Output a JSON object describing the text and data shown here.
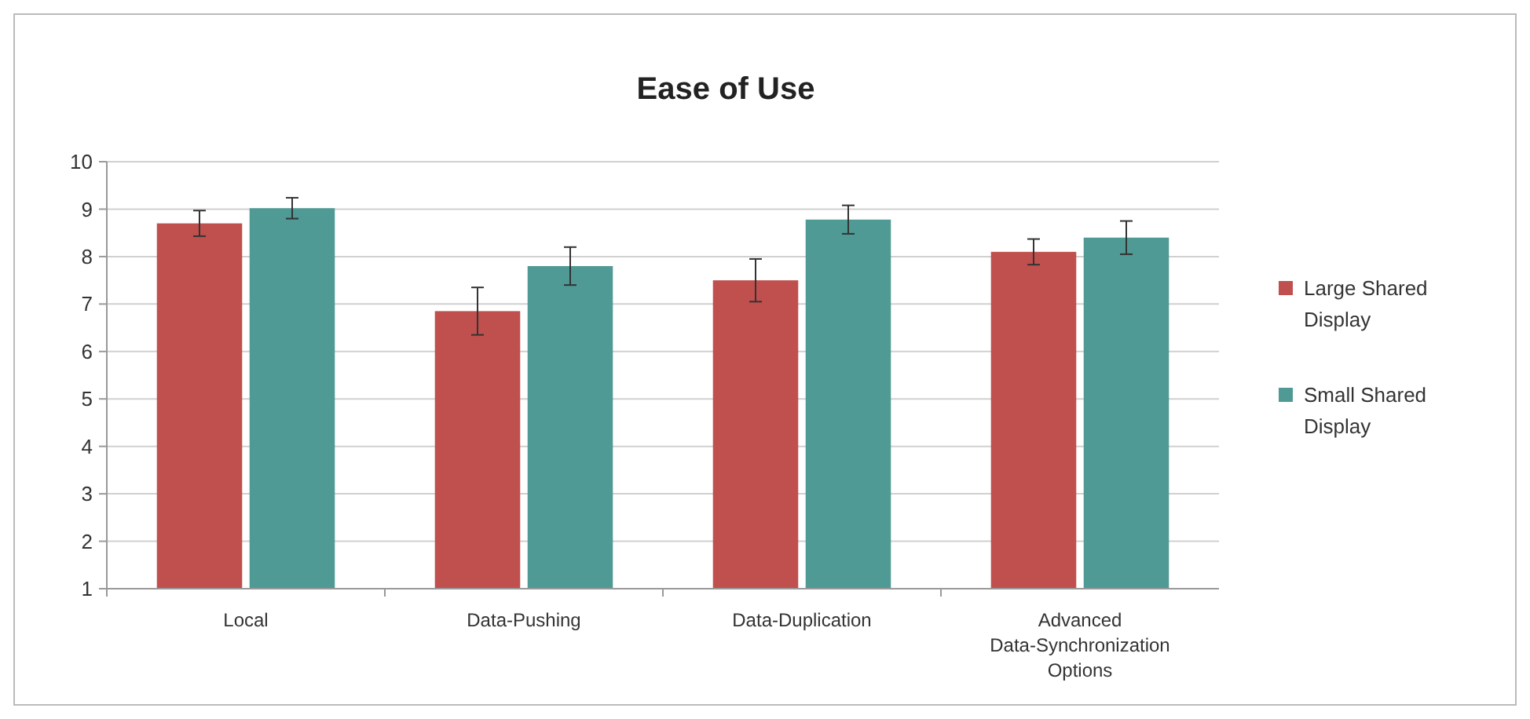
{
  "chart_data": {
    "type": "bar",
    "title": "Ease of Use",
    "categories": [
      "Local",
      "Data-Pushing",
      "Data-Duplication",
      "Advanced Data-Synchronization Options"
    ],
    "series": [
      {
        "name": "Large Shared Display",
        "color": "#c0504d",
        "values": [
          8.7,
          6.85,
          7.5,
          8.1
        ],
        "errors": [
          0.27,
          0.5,
          0.45,
          0.27
        ]
      },
      {
        "name": "Small Shared Display",
        "color": "#4f9a94",
        "values": [
          9.02,
          7.8,
          8.78,
          8.4
        ],
        "errors": [
          0.22,
          0.4,
          0.3,
          0.35
        ]
      }
    ],
    "ylim": [
      1,
      10
    ],
    "yticks": [
      1,
      2,
      3,
      4,
      5,
      6,
      7,
      8,
      9,
      10
    ],
    "grid": "y",
    "legend": "right"
  }
}
